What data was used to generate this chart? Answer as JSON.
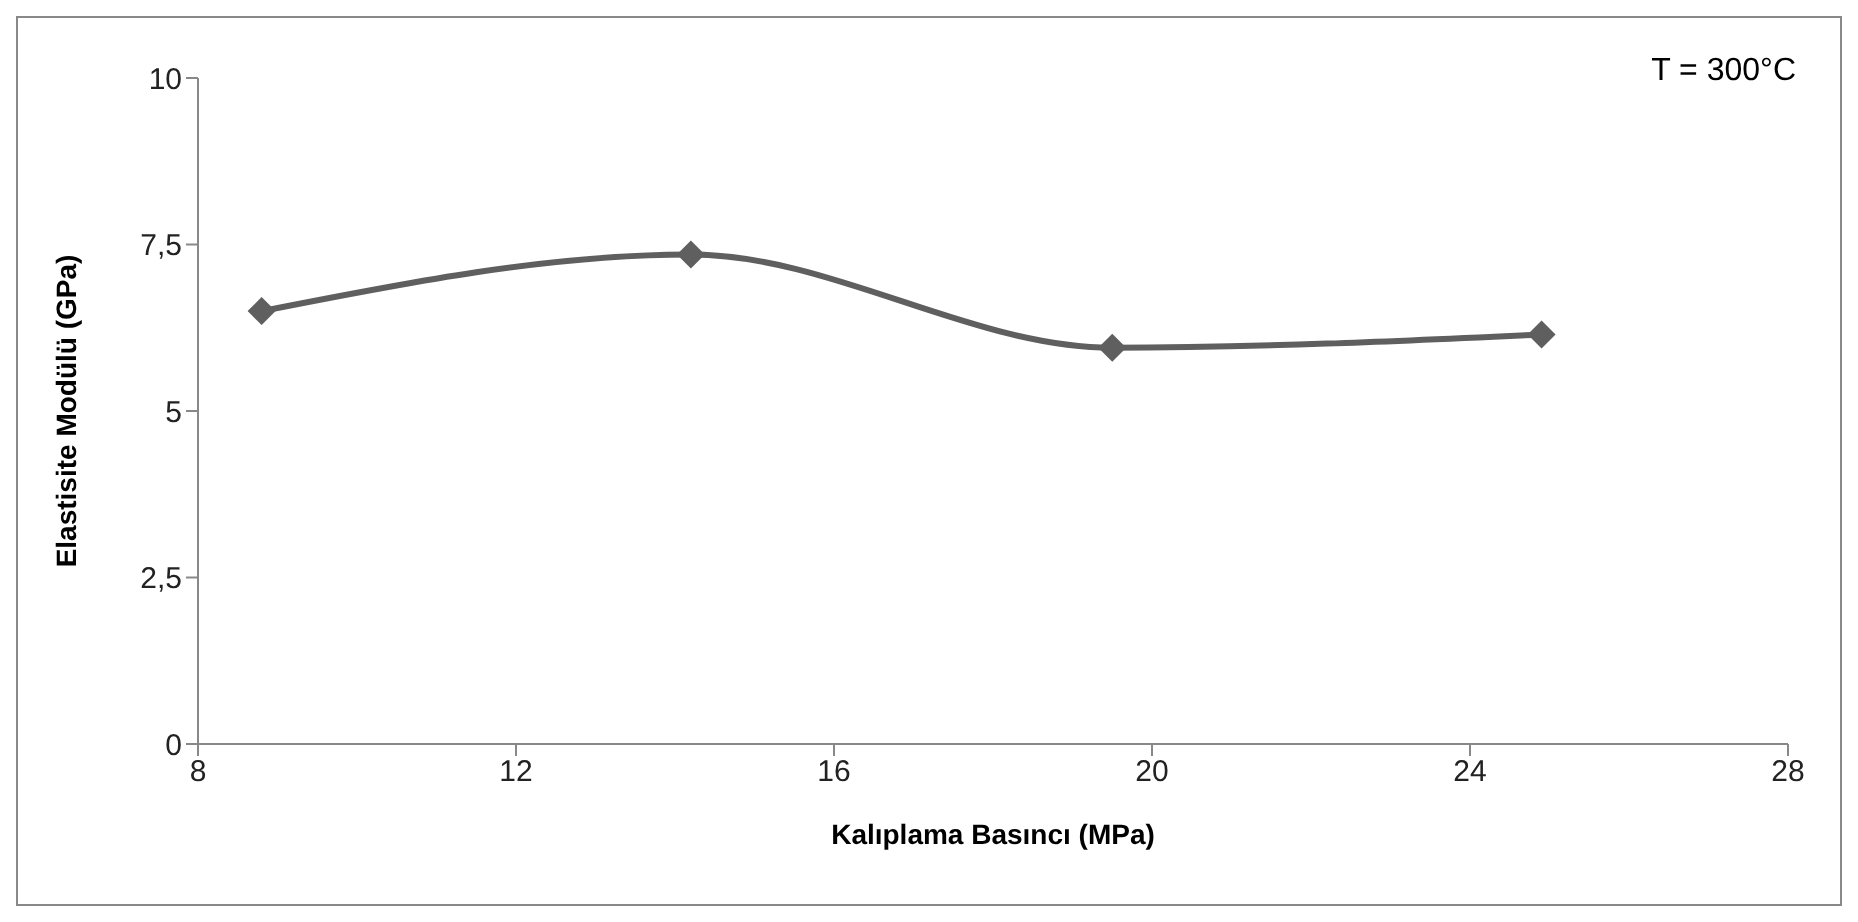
{
  "chart_data": {
    "type": "line",
    "xlabel": "Kalıplama Basıncı (MPa)",
    "ylabel": "Elastisite Modülü (GPa)",
    "annotations": [
      "T = 300°C"
    ],
    "x": [
      8.8,
      14.2,
      19.5,
      24.9
    ],
    "series": [
      {
        "color": "#5f5f5f",
        "values": [
          6.5,
          7.35,
          5.95,
          6.15
        ]
      }
    ],
    "xlim": [
      8,
      28
    ],
    "xticks": [
      8,
      12,
      16,
      20,
      24,
      28
    ],
    "ylim": [
      0,
      10
    ],
    "yticks": [
      0,
      {
        "value": 2.5,
        "label": "2,5"
      },
      5,
      {
        "value": 7.5,
        "label": "7,5"
      },
      10
    ],
    "grid": false,
    "legend": false,
    "marker": "diamond",
    "line_style": "solid"
  }
}
